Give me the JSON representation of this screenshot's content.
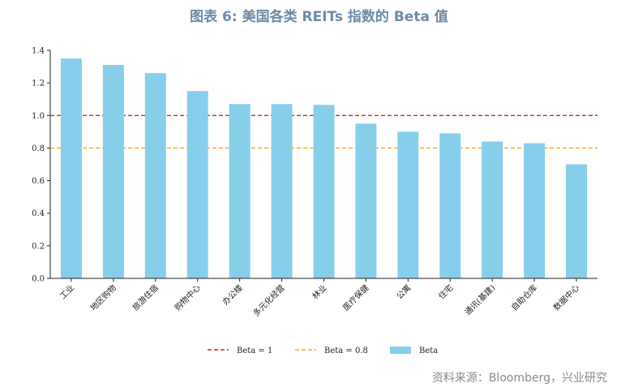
{
  "title": "图表 6:   美国各类 REITs 指数的 Beta 值",
  "source": "资料来源：Bloomberg，兴业研究",
  "chart_data": {
    "type": "bar",
    "categories": [
      "工业",
      "地区购物",
      "旅游住宿",
      "购物中心",
      "办公楼",
      "多元化经营",
      "林业",
      "医疗保健",
      "公寓",
      "住宅",
      "通讯(基建)",
      "自助仓库",
      "数据中心"
    ],
    "series": [
      {
        "name": "Beta",
        "values": [
          1.35,
          1.31,
          1.26,
          1.15,
          1.07,
          1.07,
          1.065,
          0.95,
          0.9,
          0.89,
          0.84,
          0.83,
          0.7
        ],
        "color": "#87ceeb"
      }
    ],
    "reference_lines": [
      {
        "name": "Beta = 1",
        "value": 1.0,
        "color": "#d62728",
        "style": "dashed"
      },
      {
        "name": "Beta = 0.8",
        "value": 0.8,
        "color": "#f5a623",
        "style": "dashed"
      }
    ],
    "ylim": [
      0,
      1.4
    ],
    "yticks": [
      "0.0",
      "0.2",
      "0.4",
      "0.6",
      "0.8",
      "1.0",
      "1.2",
      "1.4"
    ],
    "legend_position": "bottom",
    "grid": false
  }
}
